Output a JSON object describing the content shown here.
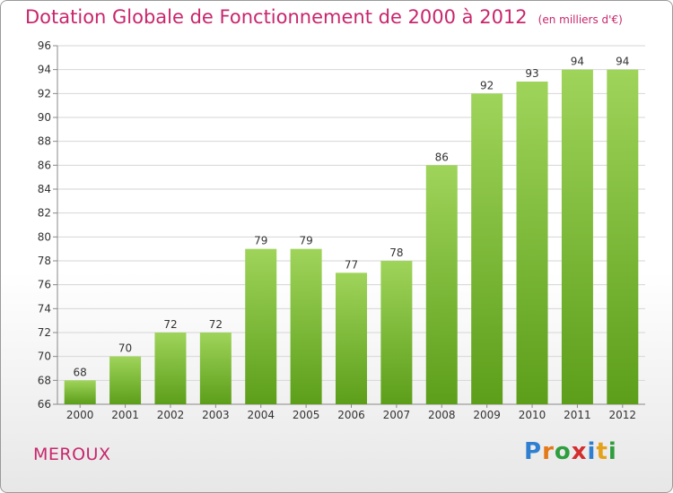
{
  "title": "Dotation Globale de Fonctionnement de 2000 à 2012",
  "subtitle": "(en milliers d'€)",
  "commune": "MEROUX",
  "logo": {
    "letters": [
      {
        "ch": "P",
        "color": "#2f7fd0"
      },
      {
        "ch": "r",
        "color": "#e4791a"
      },
      {
        "ch": "o",
        "color": "#2f9e3e"
      },
      {
        "ch": "x",
        "color": "#d42e2e"
      },
      {
        "ch": "i",
        "color": "#2f7fd0"
      },
      {
        "ch": "t",
        "color": "#e4a21a"
      },
      {
        "ch": "i",
        "color": "#2f9e3e"
      }
    ]
  },
  "colors": {
    "bar_top": "#9fd45a",
    "bar_bottom": "#5c9e1a",
    "title": "#c8266c",
    "grid": "#d6d6d6"
  },
  "chart_data": {
    "type": "bar",
    "title": "Dotation Globale de Fonctionnement de 2000 à 2012",
    "subtitle": "(en milliers d'€)",
    "categories": [
      "2000",
      "2001",
      "2002",
      "2003",
      "2004",
      "2005",
      "2006",
      "2007",
      "2008",
      "2009",
      "2010",
      "2011",
      "2012"
    ],
    "values": [
      68,
      70,
      72,
      72,
      79,
      79,
      77,
      78,
      86,
      92,
      93,
      94,
      94
    ],
    "ylim": [
      66,
      96
    ],
    "yticks": [
      66,
      68,
      70,
      72,
      74,
      76,
      78,
      80,
      82,
      84,
      86,
      88,
      90,
      92,
      94,
      96
    ],
    "grid": true,
    "xlabel": "",
    "ylabel": ""
  }
}
